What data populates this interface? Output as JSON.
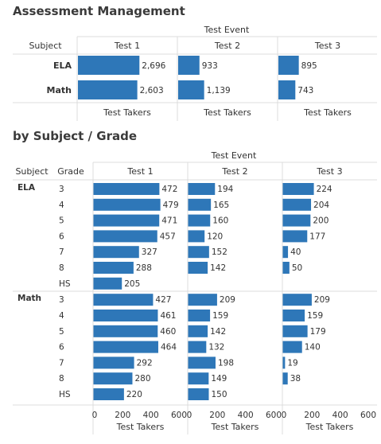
{
  "page": {
    "title_top": "Assessment Management",
    "title_bottom": "by Subject / Grade"
  },
  "chart_data": [
    {
      "type": "bar",
      "orientation": "horizontal",
      "column_header": "Test Event",
      "row_header": "Subject",
      "panels": [
        "Test 1",
        "Test 2",
        "Test 3"
      ],
      "categories": [
        "ELA",
        "Math"
      ],
      "series": [
        {
          "panel": "Test 1",
          "values": [
            2696,
            2603
          ]
        },
        {
          "panel": "Test 2",
          "values": [
            933,
            1139
          ]
        },
        {
          "panel": "Test 3",
          "values": [
            895,
            743
          ]
        }
      ],
      "value_labels": [
        [
          "2,696",
          "2,603"
        ],
        [
          "933",
          "1,139"
        ],
        [
          "895",
          "743"
        ]
      ],
      "xlabel": "Test Takers",
      "xlim": [
        0,
        3000
      ],
      "bar_color": "#2e77b8"
    },
    {
      "type": "bar",
      "orientation": "horizontal",
      "column_header": "Test Event",
      "row_headers": [
        "Subject",
        "Grade"
      ],
      "panels": [
        "Test 1",
        "Test 2",
        "Test 3"
      ],
      "groups": [
        {
          "subject": "ELA",
          "grades": [
            "3",
            "4",
            "5",
            "6",
            "7",
            "8",
            "HS"
          ],
          "values": {
            "Test 1": [
              472,
              479,
              471,
              457,
              327,
              288,
              205
            ],
            "Test 2": [
              194,
              165,
              160,
              120,
              152,
              142,
              null
            ],
            "Test 3": [
              224,
              204,
              200,
              177,
              40,
              50,
              null
            ]
          }
        },
        {
          "subject": "Math",
          "grades": [
            "3",
            "4",
            "5",
            "6",
            "7",
            "8",
            "HS"
          ],
          "values": {
            "Test 1": [
              427,
              461,
              460,
              464,
              292,
              280,
              220
            ],
            "Test 2": [
              209,
              159,
              142,
              132,
              198,
              149,
              150
            ],
            "Test 3": [
              209,
              159,
              179,
              140,
              19,
              38,
              null
            ]
          }
        }
      ],
      "xlabel": "Test Takers",
      "xlim": [
        0,
        600
      ],
      "xticks": [
        0,
        200,
        400,
        600
      ],
      "bar_color": "#2e77b8"
    }
  ]
}
